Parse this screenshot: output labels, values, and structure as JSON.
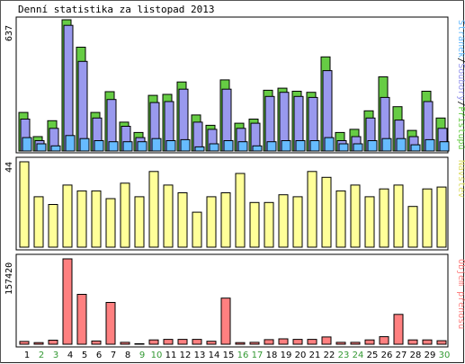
{
  "title": "Denní statistika za listopad 2013",
  "colors": {
    "hits": "#66cc44",
    "files": "#9999ee",
    "pages": "#66bbff",
    "visits": "#ffff99",
    "kbytes": "#ff8080",
    "weekend_day": "#339933",
    "weekday": "#000000"
  },
  "chart_data": [
    {
      "type": "bar",
      "name": "hits-files-pages",
      "ymax_label": "637",
      "ylim": [
        0,
        637
      ],
      "series_labels": [
        "Stránek",
        "/",
        "Soubory",
        "/",
        "Přístupů"
      ],
      "x": [
        1,
        2,
        3,
        4,
        5,
        6,
        7,
        8,
        9,
        10,
        11,
        12,
        13,
        14,
        15,
        16,
        17,
        18,
        19,
        20,
        21,
        22,
        23,
        24,
        25,
        26,
        27,
        28,
        29,
        30
      ],
      "series": [
        {
          "name": "Přístupů",
          "values": [
            187,
            70,
            147,
            637,
            504,
            187,
            288,
            140,
            90,
            270,
            275,
            335,
            175,
            125,
            345,
            135,
            155,
            295,
            305,
            290,
            285,
            457,
            90,
            105,
            195,
            360,
            215,
            100,
            290,
            160
          ]
        },
        {
          "name": "Soubory",
          "values": [
            155,
            50,
            110,
            610,
            435,
            160,
            250,
            120,
            65,
            235,
            240,
            300,
            140,
            105,
            300,
            110,
            135,
            265,
            285,
            265,
            260,
            390,
            50,
            70,
            160,
            260,
            150,
            70,
            240,
            110
          ]
        },
        {
          "name": "Stránek",
          "values": [
            65,
            35,
            25,
            75,
            60,
            50,
            45,
            45,
            45,
            60,
            50,
            55,
            20,
            35,
            50,
            45,
            25,
            45,
            50,
            50,
            50,
            65,
            35,
            35,
            50,
            60,
            60,
            30,
            55,
            45
          ]
        }
      ]
    },
    {
      "type": "bar",
      "name": "visits",
      "ymax_label": "44",
      "ylim": [
        0,
        44
      ],
      "series_labels": [
        "Návštěv"
      ],
      "x": [
        1,
        2,
        3,
        4,
        5,
        6,
        7,
        8,
        9,
        10,
        11,
        12,
        13,
        14,
        15,
        16,
        17,
        18,
        19,
        20,
        21,
        22,
        23,
        24,
        25,
        26,
        27,
        28,
        29,
        30
      ],
      "series": [
        {
          "name": "Návštěv",
          "values": [
            44,
            26,
            22,
            32,
            29,
            29,
            25,
            33,
            26,
            39,
            32,
            28,
            18,
            26,
            28,
            38,
            23,
            23,
            27,
            26,
            39,
            36,
            29,
            32,
            26,
            30,
            32,
            21,
            30,
            31
          ]
        }
      ]
    },
    {
      "type": "bar",
      "name": "kbytes",
      "ymax_label": "157420",
      "ylim": [
        0,
        157420
      ],
      "series_labels": [
        "Objem přenosu"
      ],
      "x": [
        1,
        2,
        3,
        4,
        5,
        6,
        7,
        8,
        9,
        10,
        11,
        12,
        13,
        14,
        15,
        16,
        17,
        18,
        19,
        20,
        21,
        22,
        23,
        24,
        25,
        26,
        27,
        28,
        29,
        30
      ],
      "series": [
        {
          "name": "Objem přenosu",
          "values": [
            5200,
            3000,
            7500,
            157420,
            92000,
            6000,
            77000,
            3500,
            1000,
            8000,
            9000,
            9000,
            9000,
            5500,
            85000,
            3000,
            3500,
            8500,
            10000,
            9000,
            9000,
            13500,
            3500,
            3500,
            8000,
            14000,
            55000,
            8000,
            8000,
            6500
          ]
        }
      ]
    }
  ],
  "days": [
    "1",
    "2",
    "3",
    "4",
    "5",
    "6",
    "7",
    "8",
    "9",
    "10",
    "11",
    "12",
    "13",
    "14",
    "15",
    "16",
    "17",
    "18",
    "19",
    "20",
    "21",
    "22",
    "23",
    "24",
    "25",
    "26",
    "27",
    "28",
    "29",
    "30"
  ],
  "weekend_days": [
    2,
    3,
    9,
    10,
    16,
    17,
    23,
    24,
    30
  ]
}
